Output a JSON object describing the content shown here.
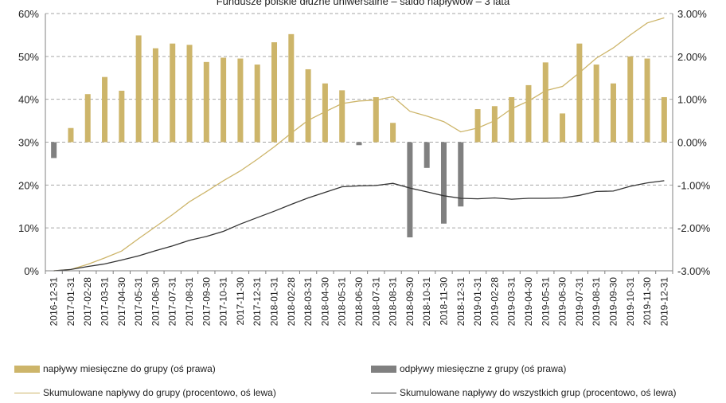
{
  "chart_data": {
    "type": "bar+line",
    "title": "Fundusze polskie dłużne uniwersalne – saldo napływów – 3 lata",
    "categories": [
      "2016-12-31",
      "2017-01-31",
      "2017-02-28",
      "2017-03-31",
      "2017-04-30",
      "2017-05-31",
      "2017-06-30",
      "2017-07-31",
      "2017-08-31",
      "2017-09-30",
      "2017-10-31",
      "2017-11-30",
      "2017-12-31",
      "2018-01-31",
      "2018-02-28",
      "2018-03-31",
      "2018-04-30",
      "2018-05-31",
      "2018-06-30",
      "2018-07-31",
      "2018-08-31",
      "2018-09-30",
      "2018-10-31",
      "2018-11-30",
      "2018-12-31",
      "2019-01-31",
      "2019-02-28",
      "2019-03-31",
      "2019-04-30",
      "2019-05-31",
      "2019-06-30",
      "2019-07-31",
      "2019-08-31",
      "2019-09-30",
      "2019-10-31",
      "2019-11-30",
      "2019-12-31"
    ],
    "y_left": {
      "ticks": [
        "0%",
        "10%",
        "20%",
        "30%",
        "40%",
        "50%",
        "60%"
      ],
      "ylim": [
        0,
        60
      ]
    },
    "y_right": {
      "ticks": [
        "-3.00%",
        "-2.00%",
        "-1.00%",
        "0.00%",
        "1.00%",
        "2.00%",
        "3.00%"
      ],
      "ylim": [
        -3,
        3
      ]
    },
    "series": [
      {
        "name": "napływy miesięczne do grupy (oś prawa)",
        "type": "bar",
        "axis": "right",
        "color": "#CDB56A",
        "values": [
          null,
          0.33,
          1.12,
          1.52,
          1.2,
          2.49,
          2.19,
          2.3,
          2.27,
          1.87,
          1.97,
          1.95,
          1.81,
          2.33,
          2.52,
          1.7,
          1.37,
          1.21,
          null,
          1.05,
          0.45,
          null,
          null,
          null,
          null,
          0.77,
          0.84,
          1.05,
          1.33,
          1.86,
          0.67,
          2.3,
          1.81,
          1.37,
          2.0,
          1.95,
          1.05
        ]
      },
      {
        "name": "odpływy miesięczne z grupy (oś prawa)",
        "type": "bar",
        "axis": "right",
        "color": "#808080",
        "values": [
          -0.37,
          null,
          null,
          null,
          null,
          null,
          null,
          null,
          null,
          null,
          null,
          null,
          null,
          null,
          null,
          null,
          null,
          null,
          -0.07,
          null,
          null,
          -2.22,
          -0.6,
          -1.9,
          -1.5,
          null,
          null,
          null,
          null,
          null,
          null,
          null,
          null,
          null,
          null,
          null,
          null
        ]
      },
      {
        "name": "Skumulowane napływy do grupy (procentowo, oś lewa)",
        "type": "line",
        "axis": "left",
        "color": "#CDB56A",
        "values": [
          0,
          0.3,
          1.5,
          3.0,
          4.6,
          7.5,
          10.3,
          13.1,
          16.1,
          18.5,
          21.0,
          23.3,
          26.0,
          28.9,
          32.1,
          35.1,
          37.1,
          39.0,
          39.6,
          39.8,
          40.6,
          37.2,
          36.1,
          34.8,
          32.4,
          33.3,
          35.0,
          37.8,
          39.6,
          42.0,
          43.0,
          46.2,
          49.6,
          52.0,
          55.0,
          57.8,
          59.0
        ]
      },
      {
        "name": "Skumulowane napływy do wszystkich grup (procentowo, oś lewa)",
        "type": "line",
        "axis": "left",
        "color": "#333333",
        "values": [
          0,
          0.3,
          1.0,
          1.6,
          2.5,
          3.5,
          4.7,
          5.8,
          7.1,
          8.0,
          9.2,
          10.9,
          12.4,
          13.9,
          15.5,
          17.0,
          18.3,
          19.6,
          19.8,
          19.9,
          20.4,
          19.3,
          18.4,
          17.5,
          16.9,
          16.8,
          17.0,
          16.7,
          16.9,
          16.9,
          17.0,
          17.6,
          18.5,
          18.6,
          19.7,
          20.5,
          21.0
        ]
      }
    ],
    "legend": {
      "bar_in": "napływy miesięczne do grupy (oś prawa)",
      "bar_out": "odpływy miesięczne z grupy (oś prawa)",
      "line_group": "Skumulowane napływy do grupy (procentowo, oś lewa)",
      "line_all": "Skumulowane napływy do wszystkich grup (procentowo, oś lewa)"
    },
    "grid": "horizontal dashed",
    "legend_placement": "bottom"
  },
  "colors": {
    "bar_in": "#CDB56A",
    "bar_out": "#808080",
    "line_group": "#CDB56A",
    "line_all": "#333333",
    "grid": "#A6A6A6"
  }
}
